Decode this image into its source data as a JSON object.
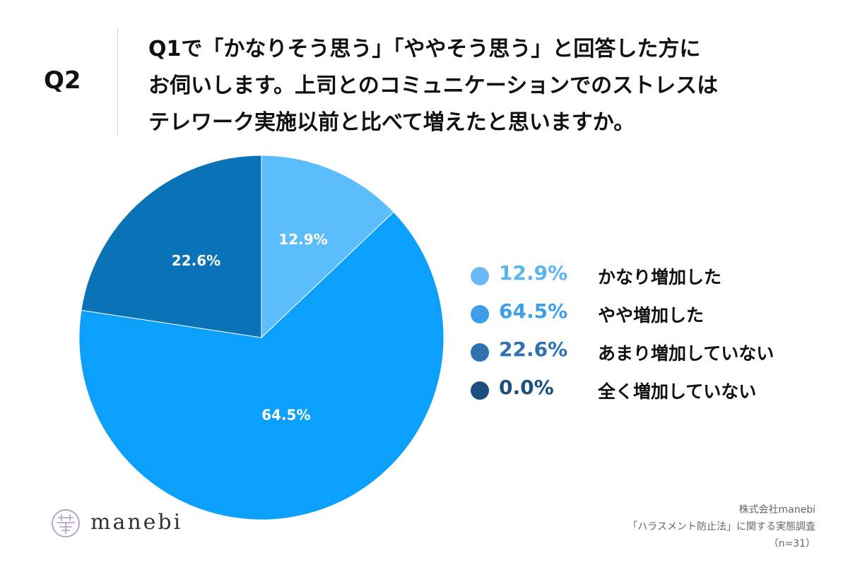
{
  "header": {
    "question_number": "Q2",
    "question_lines": [
      "Q1で「かなりそう思う」「ややそう思う」と回答した方に",
      "お伺いします。上司とのコミュニケーションでのストレスは",
      "テレワーク実施以前と比べて増えたと思いますか。"
    ]
  },
  "chart_data": {
    "type": "pie",
    "start_angle_deg": 0,
    "direction": "clockwise",
    "slices": [
      {
        "label": "かなり増加した",
        "value": 12.9,
        "display": "12.9%",
        "color": "#5bbdfb",
        "legend_text_color": "#5bbdfb"
      },
      {
        "label": "やや増加した",
        "value": 64.5,
        "display": "64.5%",
        "color": "#0aa0fc",
        "legend_text_color": "#3a9ce8"
      },
      {
        "label": "あまり増加していない",
        "value": 22.6,
        "display": "22.6%",
        "color": "#0a72b6",
        "legend_text_color": "#2f6eaa"
      },
      {
        "label": "全く増加していない",
        "value": 0.0,
        "display": "0.0%",
        "color": "#1d4e80",
        "legend_text_color": "#1d4e80"
      }
    ]
  },
  "legend": {
    "items": [
      {
        "pct": "12.9%",
        "name": "かなり増加した",
        "dot_color": "#69b9f2",
        "pct_color": "#5bb4f2"
      },
      {
        "pct": "64.5%",
        "name": "やや増加した",
        "dot_color": "#3d9ee9",
        "pct_color": "#3d9ee9"
      },
      {
        "pct": "22.6%",
        "name": "あまり増加していない",
        "dot_color": "#2f70b0",
        "pct_color": "#2f70b0"
      },
      {
        "pct": "0.0%",
        "name": "全く増加していない",
        "dot_color": "#1d4e80",
        "pct_color": "#1d4e80"
      }
    ]
  },
  "logo": {
    "text": "manebi",
    "icon": "manebi-logo-icon",
    "icon_color": "#b9a2d6"
  },
  "source": {
    "company": "株式会社manebi",
    "survey": "「ハラスメント防止法」に関する実態調査",
    "sample": "（n=31）"
  }
}
